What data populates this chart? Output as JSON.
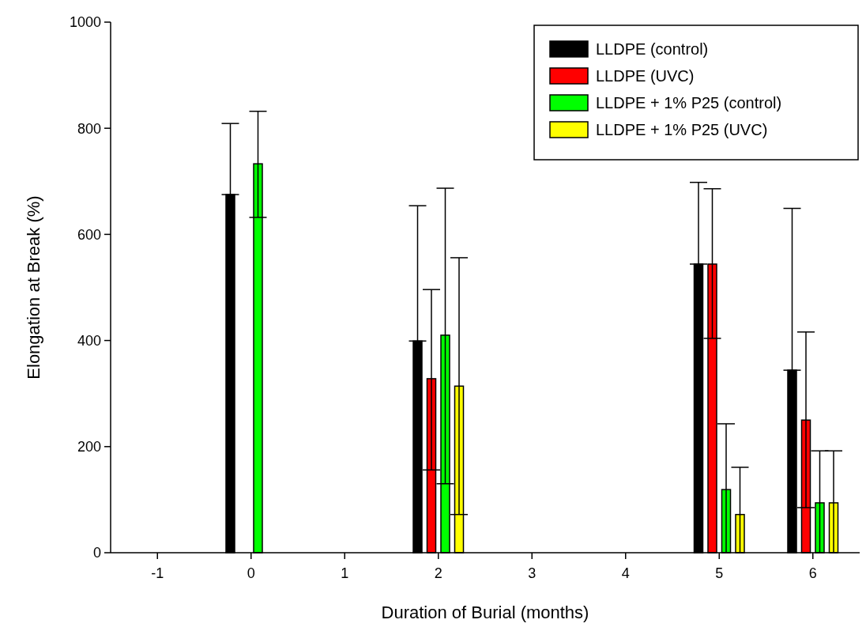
{
  "chart_data": {
    "type": "bar",
    "xlabel": "Duration of Burial (months)",
    "ylabel": "Elongation at Break (%)",
    "categories": [
      "-1",
      "0",
      "1",
      "2",
      "3",
      "4",
      "5",
      "6"
    ],
    "series": [
      {
        "name": "LLDPE (control)",
        "color": "#000000",
        "values": [
          null,
          675,
          null,
          399,
          null,
          null,
          544,
          344
        ],
        "errors": [
          null,
          [
            675,
            809
          ],
          null,
          [
            399,
            654
          ],
          null,
          null,
          [
            544,
            698
          ],
          [
            344,
            649
          ]
        ]
      },
      {
        "name": "LLDPE (UVC)",
        "color": "#ff0000",
        "values": [
          null,
          null,
          null,
          328,
          null,
          null,
          544,
          250
        ],
        "errors": [
          null,
          null,
          null,
          [
            156,
            496
          ],
          null,
          null,
          [
            404,
            686
          ],
          [
            85,
            416
          ]
        ]
      },
      {
        "name": "LLDPE + 1% P25 (control)",
        "color": "#00ff00",
        "values": [
          null,
          733,
          null,
          410,
          null,
          null,
          119,
          94
        ],
        "errors": [
          null,
          [
            632,
            832
          ],
          null,
          [
            130,
            687
          ],
          null,
          null,
          [
            0,
            243
          ],
          [
            0,
            192
          ]
        ]
      },
      {
        "name": "LLDPE + 1% P25 (UVC)",
        "color": "#ffff00",
        "values": [
          null,
          null,
          null,
          314,
          null,
          null,
          72,
          94
        ],
        "errors": [
          null,
          null,
          null,
          [
            72,
            556
          ],
          null,
          null,
          [
            0,
            161
          ],
          [
            0,
            192
          ]
        ]
      }
    ],
    "ylim": [
      0,
      1000
    ],
    "yticks": [
      0,
      200,
      400,
      600,
      800,
      1000
    ],
    "grid": false,
    "legend": "top right"
  }
}
